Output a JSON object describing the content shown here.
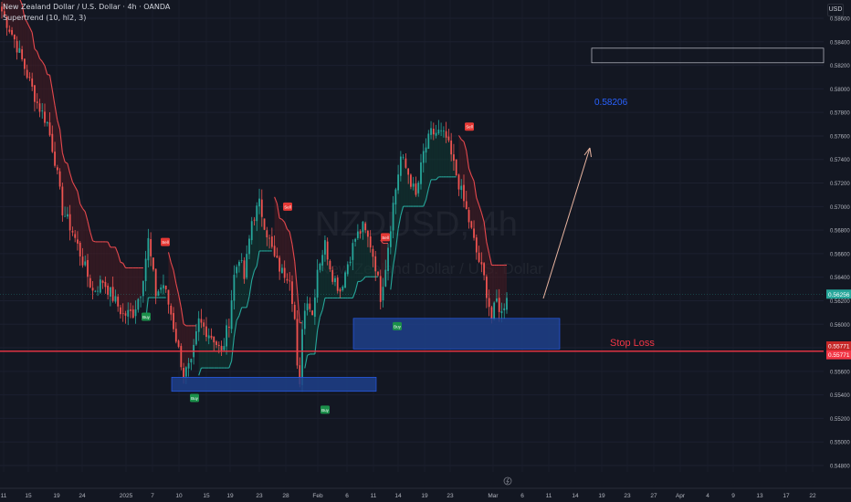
{
  "header": {
    "title": "New Zealand Dollar / U.S. Dollar · 4h · OANDA",
    "indicator": "Supertrend (10, hl2, 3)",
    "currency": "USD"
  },
  "watermark": {
    "symbol": "NZDUSD, 4h",
    "name": "New Zealand Dollar / U.S. Dollar"
  },
  "annotations": {
    "target_label": "0.58206",
    "stop_label": "Stop Loss",
    "current_price_label": "0.56256",
    "stop_price_label_1": "0.55771",
    "stop_price_label_2": "0.55771"
  },
  "colors": {
    "background": "#131722",
    "up": "#26a69a",
    "down": "#ef5350",
    "supertrend_up": "#26a69a",
    "supertrend_down": "#e5484d",
    "zone_fill": "#1e3f8a",
    "stop_line": "#f23645",
    "target_text": "#2962ff",
    "arrow": "#e8b4a0"
  },
  "chart_data": {
    "type": "candlestick",
    "title": "New Zealand Dollar / U.S. Dollar · 4h · OANDA",
    "ylabel": "USD",
    "ylim": [
      0.547,
      0.5875
    ],
    "y_ticks": [
      0.548,
      0.55,
      0.552,
      0.554,
      0.556,
      0.558,
      0.56,
      0.562,
      0.564,
      0.566,
      0.568,
      0.57,
      0.572,
      0.574,
      0.576,
      0.578,
      0.58,
      0.582,
      0.584,
      0.586
    ],
    "x_ticks": [
      "11",
      "15",
      "19",
      "24",
      "2025",
      "7",
      "10",
      "15",
      "19",
      "23",
      "28",
      "Feb",
      "6",
      "11",
      "14",
      "19",
      "23",
      "Mar",
      "6",
      "11",
      "14",
      "19",
      "23",
      "27",
      "Apr",
      "4",
      "9",
      "13",
      "17",
      "22"
    ],
    "series": [
      {
        "name": "Supertrend (10, hl2, 3)",
        "kind": "supertrend"
      }
    ],
    "price_path": [
      [
        0,
        0.5866
      ],
      [
        5,
        0.5842
      ],
      [
        10,
        0.5812
      ],
      [
        14,
        0.5788
      ],
      [
        18,
        0.5771
      ],
      [
        21,
        0.574
      ],
      [
        24,
        0.5697
      ],
      [
        28,
        0.5679
      ],
      [
        32,
        0.5654
      ],
      [
        36,
        0.5628
      ],
      [
        40,
        0.5637
      ],
      [
        44,
        0.5623
      ],
      [
        48,
        0.5608
      ],
      [
        52,
        0.561
      ],
      [
        55,
        0.5628
      ],
      [
        58,
        0.5671
      ],
      [
        61,
        0.5626
      ],
      [
        64,
        0.5634
      ],
      [
        67,
        0.5609
      ],
      [
        70,
        0.5578
      ],
      [
        72,
        0.5558
      ],
      [
        75,
        0.5565
      ],
      [
        78,
        0.5602
      ],
      [
        81,
        0.5595
      ],
      [
        84,
        0.5588
      ],
      [
        87,
        0.5575
      ],
      [
        90,
        0.5603
      ],
      [
        92,
        0.5641
      ],
      [
        94,
        0.5658
      ],
      [
        96,
        0.5639
      ],
      [
        99,
        0.5688
      ],
      [
        102,
        0.5702
      ],
      [
        105,
        0.5678
      ],
      [
        108,
        0.5656
      ],
      [
        111,
        0.5644
      ],
      [
        114,
        0.5642
      ],
      [
        116,
        0.5604
      ],
      [
        117,
        0.5561
      ],
      [
        118,
        0.5545
      ],
      [
        119,
        0.56
      ],
      [
        121,
        0.5623
      ],
      [
        123,
        0.5608
      ],
      [
        125,
        0.5648
      ],
      [
        128,
        0.5668
      ],
      [
        131,
        0.5642
      ],
      [
        134,
        0.5629
      ],
      [
        137,
        0.5652
      ],
      [
        140,
        0.5673
      ],
      [
        143,
        0.5682
      ],
      [
        146,
        0.5668
      ],
      [
        148,
        0.565
      ],
      [
        150,
        0.5624
      ],
      [
        152,
        0.565
      ],
      [
        155,
        0.5702
      ],
      [
        158,
        0.5742
      ],
      [
        161,
        0.5728
      ],
      [
        164,
        0.5708
      ],
      [
        167,
        0.5745
      ],
      [
        170,
        0.5762
      ],
      [
        173,
        0.5763
      ],
      [
        176,
        0.5758
      ],
      [
        179,
        0.5735
      ],
      [
        182,
        0.5712
      ],
      [
        185,
        0.5688
      ],
      [
        188,
        0.5661
      ],
      [
        191,
        0.5639
      ],
      [
        194,
        0.5605
      ],
      [
        196,
        0.562
      ],
      [
        198,
        0.5609
      ],
      [
        200,
        0.5626
      ]
    ],
    "signals": [
      {
        "type": "Sell",
        "price": 0.5668
      },
      {
        "type": "Buy",
        "price": 0.5606
      },
      {
        "type": "Sell",
        "price": 0.5698
      },
      {
        "type": "Buy",
        "price": 0.5537
      },
      {
        "type": "Buy",
        "price": 0.5527
      },
      {
        "type": "Sell",
        "price": 0.5672
      },
      {
        "type": "Buy",
        "price": 0.5598
      },
      {
        "type": "Sell",
        "price": 0.5766
      }
    ],
    "zones": [
      {
        "price_low": 0.5543,
        "price_high": 0.5555
      },
      {
        "price_low": 0.5579,
        "price_high": 0.5605
      }
    ],
    "levels": {
      "stop_loss": 0.55771,
      "target": 0.58206,
      "current": 0.56256
    }
  }
}
